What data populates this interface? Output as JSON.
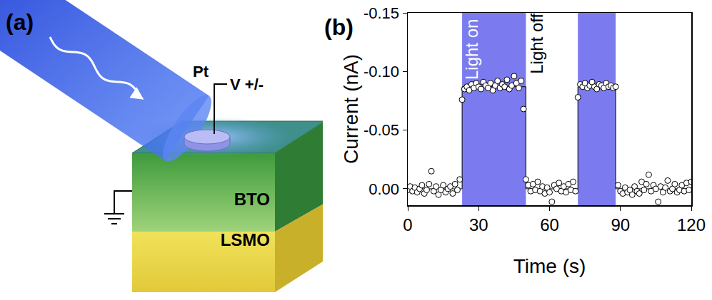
{
  "diagram": {
    "label": "(a)",
    "electrode": "Pt",
    "bias": "V +/-",
    "layers": [
      "BTO",
      "LSMO"
    ]
  },
  "chart_data": {
    "label": "(b)",
    "type": "scatter",
    "x_label": "Time (s)",
    "y_label": "Current (nA)",
    "xlim": [
      0,
      120
    ],
    "xticks": [
      0,
      30,
      60,
      90,
      120
    ],
    "ylim": [
      0.014,
      -0.15
    ],
    "yticks": [
      -0.15,
      {
        "value": -0.1,
        "label": "-0.10"
      },
      -0.05,
      {
        "value": 0.0,
        "label": "0.00"
      }
    ],
    "grid": false,
    "light_bands": [
      {
        "x0": 23,
        "x1": 50
      },
      {
        "x0": 72,
        "x1": 88
      }
    ],
    "band_color": "#7b7bef",
    "annotations": [
      {
        "text": "Light on",
        "x": 26.9,
        "y": -0.119,
        "color": "#ffffff"
      },
      {
        "text": "Light off",
        "x": 54.7,
        "y": -0.124,
        "color": "#000000"
      }
    ],
    "series": [
      {
        "type": "line",
        "color": "#000000",
        "line_style": "solid",
        "x": [
          0,
          23,
          23,
          50,
          50,
          72,
          72,
          88,
          88,
          120
        ],
        "values": [
          0,
          0,
          -0.087,
          -0.087,
          0,
          0,
          -0.087,
          -0.087,
          0,
          0
        ]
      },
      {
        "type": "scatter",
        "marker": "circle",
        "color": "#000000",
        "x": [
          0,
          1,
          2,
          3,
          4,
          5,
          6,
          7,
          8,
          9,
          10,
          11,
          12,
          13,
          14,
          15,
          16,
          17,
          18,
          19,
          20,
          21,
          22,
          23,
          24,
          25,
          26,
          27,
          28,
          29,
          30,
          31,
          32,
          33,
          34,
          35,
          36,
          37,
          38,
          39,
          40,
          41,
          42,
          43,
          44,
          45,
          46,
          47,
          48,
          49,
          50,
          51,
          52,
          53,
          54,
          55,
          56,
          57,
          58,
          59,
          60,
          61,
          62,
          63,
          64,
          65,
          66,
          67,
          68,
          69,
          70,
          71,
          72,
          73,
          74,
          75,
          76,
          77,
          78,
          79,
          80,
          81,
          82,
          83,
          84,
          85,
          86,
          87,
          88,
          89,
          90,
          91,
          92,
          93,
          94,
          95,
          96,
          97,
          98,
          99,
          100,
          101,
          102,
          103,
          104,
          105,
          106,
          107,
          108,
          109,
          110,
          111,
          112,
          113,
          114,
          115,
          116,
          117,
          118,
          119,
          120
        ],
        "values": [
          0.001,
          -0.002,
          0.002,
          -0.001,
          0.003,
          0.0,
          -0.003,
          0.004,
          0.001,
          -0.004,
          -0.015,
          0.002,
          -0.002,
          0.005,
          0.001,
          -0.003,
          0.003,
          0.0,
          -0.002,
          0.004,
          -0.004,
          0.001,
          -0.008,
          -0.076,
          -0.085,
          -0.087,
          -0.084,
          -0.089,
          -0.086,
          -0.09,
          -0.087,
          -0.085,
          -0.091,
          -0.088,
          -0.086,
          -0.09,
          -0.084,
          -0.088,
          -0.092,
          -0.086,
          -0.089,
          -0.087,
          -0.093,
          -0.085,
          -0.088,
          -0.096,
          -0.09,
          -0.086,
          -0.092,
          -0.068,
          -0.008,
          -0.003,
          0.002,
          -0.004,
          0.001,
          -0.006,
          0.002,
          -0.002,
          0.004,
          -0.001,
          0.003,
          0.011,
          -0.003,
          0.0,
          -0.005,
          0.002,
          -0.002,
          0.003,
          -0.004,
          0.001,
          -0.006,
          0.002,
          -0.078,
          -0.089,
          -0.087,
          -0.09,
          -0.086,
          -0.088,
          -0.091,
          -0.087,
          -0.085,
          -0.089,
          -0.088,
          -0.086,
          -0.09,
          -0.087,
          -0.088,
          -0.086,
          -0.087,
          -0.003,
          0.002,
          0.004,
          -0.001,
          0.003,
          0.001,
          0.005,
          -0.002,
          0.002,
          0.004,
          -0.006,
          0.001,
          -0.004,
          -0.012,
          0.002,
          -0.003,
          0.0,
          0.011,
          -0.002,
          0.003,
          -0.001,
          -0.007,
          0.002,
          0.0,
          -0.004,
          0.003,
          0.001,
          -0.003,
          0.002,
          -0.005,
          0.001,
          -0.006
        ]
      }
    ]
  }
}
